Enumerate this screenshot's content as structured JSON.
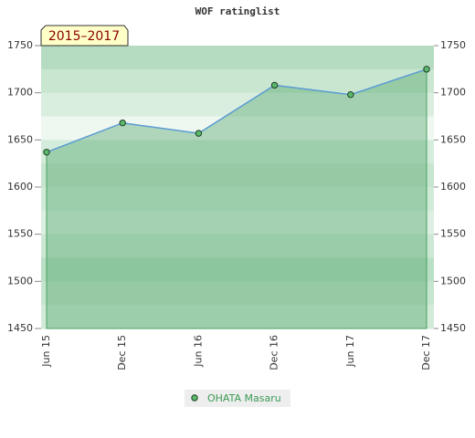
{
  "chart_data": {
    "type": "line",
    "title": "WOF ratinglist",
    "annotation": "2015–2017",
    "categories": [
      "Jun 15",
      "Dec 15",
      "Jun 16",
      "Dec 16",
      "Jun 17",
      "Dec 17"
    ],
    "series": [
      {
        "name": "OHATA Masaru",
        "color": "#5b9bd5",
        "marker_color": "#5cb86c",
        "values": [
          1637,
          1668,
          1657,
          1708,
          1698,
          1725
        ]
      }
    ],
    "ylim": [
      1450,
      1750
    ],
    "yticks": [
      1450,
      1500,
      1550,
      1600,
      1650,
      1700,
      1750
    ],
    "y2lim": [
      1450,
      1750
    ],
    "y2ticks": [
      1450,
      1500,
      1550,
      1600,
      1650,
      1700,
      1750
    ],
    "legend": "bottom"
  }
}
